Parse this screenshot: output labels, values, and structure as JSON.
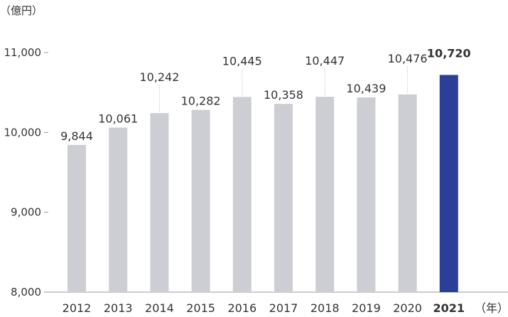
{
  "chart_data": {
    "type": "bar",
    "y_unit_label": "（億円）",
    "x_unit_label": "（年）",
    "categories": [
      "2012",
      "2013",
      "2014",
      "2015",
      "2016",
      "2017",
      "2018",
      "2019",
      "2020",
      "2021"
    ],
    "values": [
      9844,
      10061,
      10242,
      10282,
      10445,
      10358,
      10447,
      10439,
      10476,
      10720
    ],
    "value_labels": [
      "9,844",
      "10,061",
      "10,242",
      "10,282",
      "10,445",
      "10,358",
      "10,447",
      "10,439",
      "10,476",
      "10,720"
    ],
    "ylim": [
      8000,
      11000
    ],
    "yticks": [
      8000,
      9000,
      10000,
      11000
    ],
    "ytick_labels": [
      "8,000",
      "9,000",
      "10,000",
      "11,000"
    ],
    "highlight_index": 9,
    "colors": {
      "bar": "#ccced4",
      "highlight": "#2b3f97",
      "axis": "#9a9a9a",
      "text": "#333333"
    },
    "grid": false
  }
}
